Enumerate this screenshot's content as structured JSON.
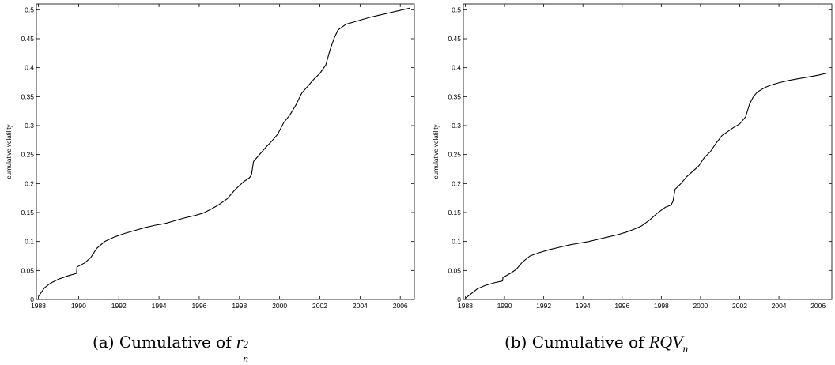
{
  "chart_data": [
    {
      "type": "line",
      "ylabel": "cumulative volatility",
      "xlim": [
        1987.9,
        2006.7
      ],
      "ylim": [
        0,
        0.51
      ],
      "xticks": [
        "1988",
        "1990",
        "1992",
        "1994",
        "1996",
        "1998",
        "2000",
        "2002",
        "2004",
        "2006"
      ],
      "yticks": [
        "0",
        "0.05",
        "0.1",
        "0.15",
        "0.2",
        "0.25",
        "0.3",
        "0.35",
        "0.4",
        "0.45",
        "0.5"
      ],
      "grid": false,
      "x": [
        1988.0,
        1988.3,
        1988.6,
        1989.0,
        1989.5,
        1989.9,
        1989.92,
        1990.3,
        1990.6,
        1990.9,
        1991.3,
        1991.8,
        1992.3,
        1992.8,
        1993.3,
        1993.8,
        1994.3,
        1994.8,
        1995.3,
        1995.8,
        1996.2,
        1996.6,
        1997.0,
        1997.4,
        1997.8,
        1998.2,
        1998.5,
        1998.6,
        1998.7,
        1999.0,
        1999.3,
        1999.6,
        1999.9,
        2000.2,
        2000.5,
        2000.8,
        2001.1,
        2001.4,
        2001.7,
        2002.0,
        2002.3,
        2002.5,
        2002.7,
        2002.9,
        2003.1,
        2003.3,
        2003.6,
        2004.0,
        2004.5,
        2005.0,
        2005.5,
        2006.0,
        2006.5
      ],
      "series": [
        {
          "values": [
            0.005,
            0.02,
            0.028,
            0.035,
            0.041,
            0.045,
            0.056,
            0.063,
            0.072,
            0.088,
            0.1,
            0.108,
            0.114,
            0.119,
            0.124,
            0.128,
            0.131,
            0.136,
            0.141,
            0.145,
            0.149,
            0.156,
            0.164,
            0.174,
            0.19,
            0.203,
            0.21,
            0.215,
            0.238,
            0.25,
            0.262,
            0.273,
            0.285,
            0.305,
            0.318,
            0.335,
            0.356,
            0.368,
            0.38,
            0.39,
            0.405,
            0.43,
            0.45,
            0.465,
            0.47,
            0.475,
            0.478,
            0.482,
            0.487,
            0.491,
            0.495,
            0.499,
            0.503
          ]
        }
      ]
    },
    {
      "type": "line",
      "ylabel": "cumulative volatility",
      "xlim": [
        1987.9,
        2006.7
      ],
      "ylim": [
        0,
        0.51
      ],
      "xticks": [
        "1988",
        "1990",
        "1992",
        "1994",
        "1996",
        "1998",
        "2000",
        "2002",
        "2004",
        "2006"
      ],
      "yticks": [
        "0",
        "0.05",
        "0.1",
        "0.15",
        "0.2",
        "0.25",
        "0.3",
        "0.35",
        "0.4",
        "0.45",
        "0.5"
      ],
      "grid": false,
      "x": [
        1988.0,
        1988.3,
        1988.6,
        1989.0,
        1989.5,
        1989.9,
        1989.92,
        1990.3,
        1990.6,
        1990.9,
        1991.3,
        1991.8,
        1992.3,
        1992.8,
        1993.3,
        1993.8,
        1994.3,
        1994.8,
        1995.3,
        1995.8,
        1996.2,
        1996.6,
        1997.0,
        1997.4,
        1997.8,
        1998.2,
        1998.5,
        1998.6,
        1998.7,
        1999.0,
        1999.3,
        1999.6,
        1999.9,
        2000.2,
        2000.5,
        2000.8,
        2001.1,
        2001.4,
        2001.7,
        2002.0,
        2002.3,
        2002.5,
        2002.7,
        2002.9,
        2003.1,
        2003.3,
        2003.6,
        2004.0,
        2004.5,
        2005.0,
        2005.5,
        2006.0,
        2006.5
      ],
      "series": [
        {
          "values": [
            0.002,
            0.01,
            0.018,
            0.024,
            0.029,
            0.032,
            0.038,
            0.045,
            0.052,
            0.064,
            0.075,
            0.081,
            0.086,
            0.09,
            0.094,
            0.097,
            0.1,
            0.104,
            0.108,
            0.112,
            0.116,
            0.121,
            0.127,
            0.137,
            0.149,
            0.159,
            0.163,
            0.17,
            0.19,
            0.2,
            0.212,
            0.221,
            0.23,
            0.245,
            0.255,
            0.27,
            0.283,
            0.29,
            0.297,
            0.303,
            0.315,
            0.337,
            0.35,
            0.358,
            0.362,
            0.366,
            0.37,
            0.374,
            0.378,
            0.381,
            0.384,
            0.387,
            0.391
          ]
        }
      ]
    }
  ],
  "captions": {
    "a": {
      "prefix": "(a)  Cumulative of ",
      "var": "r",
      "sup": "2",
      "sub": "n"
    },
    "b": {
      "prefix": "(b)  Cumulative of ",
      "var": "RQV",
      "sub": "n"
    }
  }
}
